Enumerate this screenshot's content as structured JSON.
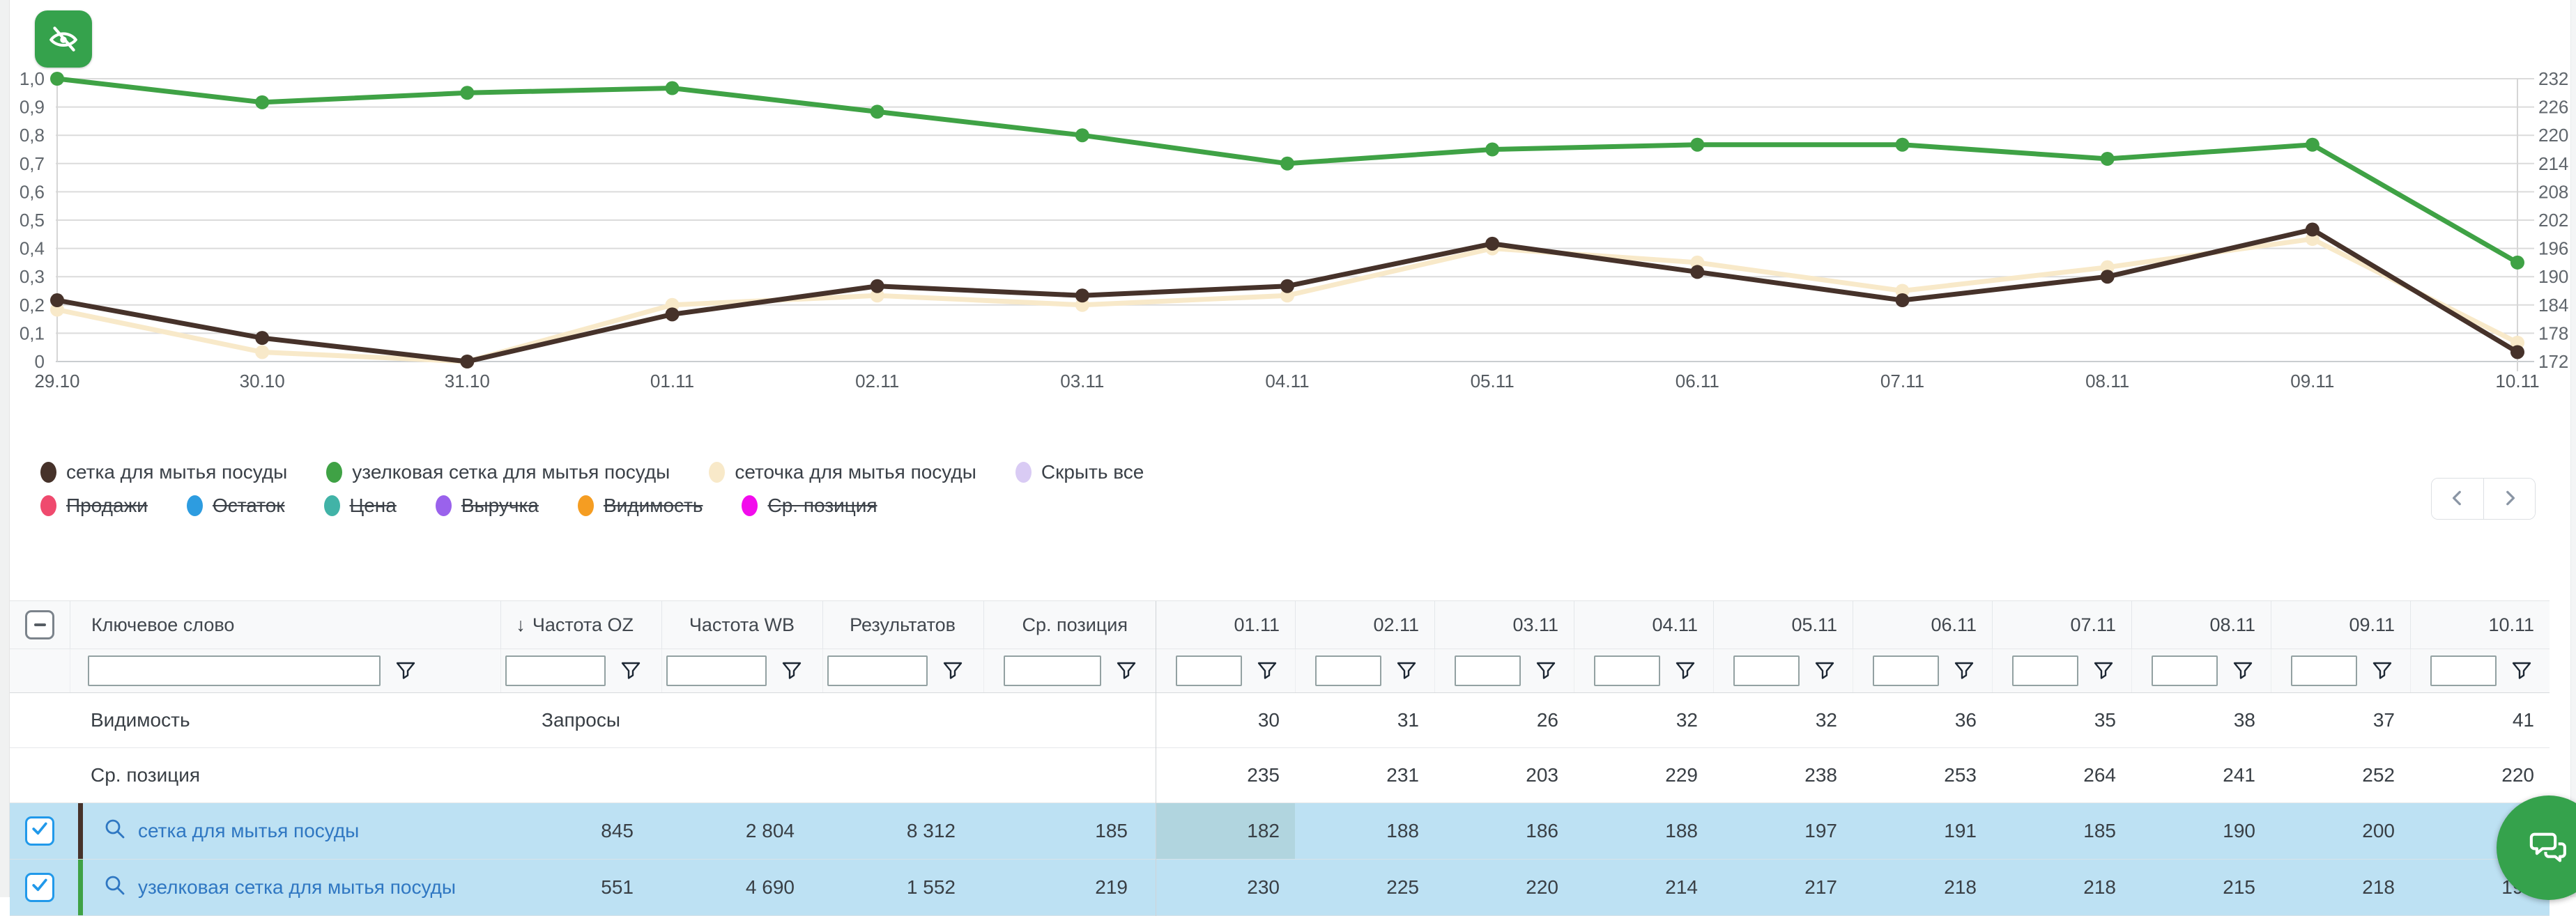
{
  "icons": {
    "toggle_points": "eye-off-icon",
    "filter": "funnel-icon",
    "keyword": "search-icon",
    "chat": "chat-bubbles-icon",
    "prev": "chevron-left-icon",
    "next": "chevron-right-icon",
    "sort": "arrow-down-icon",
    "select_all": "indeterminate-checkbox-icon",
    "row_checkbox": "checkbox-checked-icon"
  },
  "colors": {
    "accent_green": "#35a24c",
    "selected_row": "#bde1f3",
    "highlight_cell": "#b1d5df",
    "keyword_link": "#2f77c2"
  },
  "chart_data": {
    "type": "line",
    "x": [
      "29.10",
      "30.10",
      "31.10",
      "01.11",
      "02.11",
      "03.11",
      "04.11",
      "05.11",
      "06.11",
      "07.11",
      "08.11",
      "09.11",
      "10.11"
    ],
    "series": [
      {
        "name": "сетка для мытья посуды",
        "color": "#46322a",
        "values": [
          185,
          177,
          172,
          182,
          188,
          186,
          188,
          197,
          191,
          185,
          190,
          200,
          174
        ]
      },
      {
        "name": "узелковая сетка для мытья посуды",
        "color": "#3fa245",
        "values": [
          232,
          227,
          229,
          230,
          225,
          220,
          214,
          217,
          218,
          218,
          215,
          218,
          193
        ]
      },
      {
        "name": "сеточка для мытья посуды",
        "color": "#f8e9c9",
        "values": [
          183,
          174,
          172,
          184,
          186,
          184,
          186,
          196,
          193,
          187,
          192,
          198,
          176
        ]
      }
    ],
    "left_axis": {
      "labels": [
        "1,0",
        "0,9",
        "0,8",
        "0,7",
        "0,6",
        "0,5",
        "0,4",
        "0,3",
        "0,2",
        "0,1",
        "0"
      ],
      "range": [
        1.0,
        0
      ]
    },
    "right_axis": {
      "labels": [
        "232",
        "226",
        "220",
        "214",
        "208",
        "202",
        "196",
        "190",
        "184",
        "178",
        "172"
      ],
      "range": [
        232,
        172
      ]
    },
    "grid": true,
    "legend_position": "bottom"
  },
  "legend": {
    "series": [
      {
        "label": "сетка для мытья посуды",
        "color": "#46322a"
      },
      {
        "label": "узелковая сетка для мытья посуды",
        "color": "#3fa245"
      },
      {
        "label": "сеточка для мытья посуды",
        "color": "#f8e9c9"
      },
      {
        "label": "Скрыть все",
        "color": "#d9cbf4"
      }
    ],
    "metrics": [
      {
        "label": "Продажи",
        "color": "#ef4a6e"
      },
      {
        "label": "Остаток",
        "color": "#2d9ce0"
      },
      {
        "label": "Цена",
        "color": "#41b3a7"
      },
      {
        "label": "Выручка",
        "color": "#9a62ec"
      },
      {
        "label": "Видимость",
        "color": "#f59d22"
      },
      {
        "label": "Ср. позиция",
        "color": "#f20cec"
      }
    ]
  },
  "table": {
    "select_all_state": "indeterminate",
    "columns": [
      {
        "label": "Ключевое слово"
      },
      {
        "label": "Частота OZ",
        "sort": "↓"
      },
      {
        "label": "Частота WB"
      },
      {
        "label": "Результатов"
      },
      {
        "label": "Ср. позиция"
      }
    ],
    "dates": [
      "01.11",
      "02.11",
      "03.11",
      "04.11",
      "05.11",
      "06.11",
      "07.11",
      "08.11",
      "09.11",
      "10.11"
    ],
    "summary_rows": [
      {
        "label": "Видимость",
        "sublabel": "Запросы",
        "values": [
          "30",
          "31",
          "26",
          "32",
          "32",
          "36",
          "35",
          "38",
          "37",
          "41"
        ]
      },
      {
        "label": "Ср. позиция",
        "sublabel": "",
        "values": [
          "235",
          "231",
          "203",
          "229",
          "238",
          "253",
          "264",
          "241",
          "252",
          "220"
        ]
      }
    ],
    "rows": [
      {
        "selected": true,
        "stripe_color": "#46322a",
        "keyword": "сетка для мытья посуды",
        "freq_oz": "845",
        "freq_wb": "2 804",
        "results": "8 312",
        "avg_pos": "185",
        "values": [
          "182",
          "188",
          "186",
          "188",
          "197",
          "191",
          "185",
          "190",
          "200",
          "174"
        ],
        "highlight_value_index": 0
      },
      {
        "selected": true,
        "stripe_color": "#3fa245",
        "keyword": "узелковая сетка для мытья посуды",
        "freq_oz": "551",
        "freq_wb": "4 690",
        "results": "1 552",
        "avg_pos": "219",
        "values": [
          "230",
          "225",
          "220",
          "214",
          "217",
          "218",
          "218",
          "215",
          "218",
          "193"
        ]
      }
    ]
  }
}
